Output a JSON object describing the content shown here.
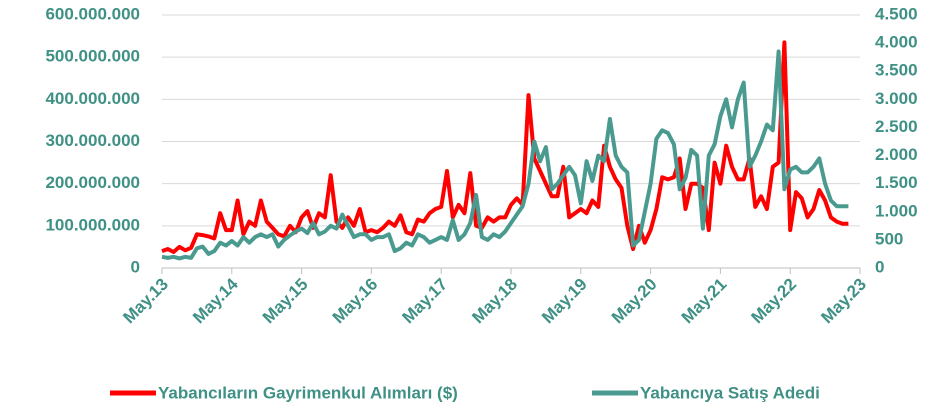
{
  "chart_data": {
    "type": "line",
    "categories": [
      "May.13",
      null,
      null,
      null,
      null,
      null,
      null,
      null,
      null,
      null,
      null,
      null,
      "May.14",
      null,
      null,
      null,
      null,
      null,
      null,
      null,
      null,
      null,
      null,
      null,
      "May.15",
      null,
      null,
      null,
      null,
      null,
      null,
      null,
      null,
      null,
      null,
      null,
      "May.16",
      null,
      null,
      null,
      null,
      null,
      null,
      null,
      null,
      null,
      null,
      null,
      "May.17",
      null,
      null,
      null,
      null,
      null,
      null,
      null,
      null,
      null,
      null,
      null,
      "May.18",
      null,
      null,
      null,
      null,
      null,
      null,
      null,
      null,
      null,
      null,
      null,
      "May.19",
      null,
      null,
      null,
      null,
      null,
      null,
      null,
      null,
      null,
      null,
      null,
      "May.20",
      null,
      null,
      null,
      null,
      null,
      null,
      null,
      null,
      null,
      null,
      null,
      "May.21",
      null,
      null,
      null,
      null,
      null,
      null,
      null,
      null,
      null,
      null,
      null,
      "May.22",
      null,
      null,
      null,
      null,
      null,
      null,
      null,
      null,
      null,
      null,
      null,
      "May.23"
    ],
    "series": [
      {
        "name": "Yabancıların Gayrimenkul Alımları ($)",
        "color": "#ff0000",
        "values": [
          40000000,
          45000000,
          38000000,
          50000000,
          42000000,
          48000000,
          80000000,
          78000000,
          75000000,
          70000000,
          130000000,
          90000000,
          90000000,
          160000000,
          80000000,
          110000000,
          100000000,
          160000000,
          110000000,
          95000000,
          80000000,
          75000000,
          100000000,
          85000000,
          120000000,
          135000000,
          95000000,
          130000000,
          120000000,
          220000000,
          110000000,
          95000000,
          120000000,
          100000000,
          140000000,
          85000000,
          90000000,
          85000000,
          95000000,
          110000000,
          100000000,
          125000000,
          85000000,
          80000000,
          115000000,
          110000000,
          130000000,
          140000000,
          145000000,
          230000000,
          120000000,
          150000000,
          130000000,
          225000000,
          100000000,
          95000000,
          120000000,
          110000000,
          120000000,
          120000000,
          150000000,
          165000000,
          150000000,
          410000000,
          260000000,
          230000000,
          200000000,
          170000000,
          170000000,
          240000000,
          120000000,
          130000000,
          140000000,
          130000000,
          160000000,
          145000000,
          290000000,
          240000000,
          210000000,
          190000000,
          100000000,
          45000000,
          100000000,
          60000000,
          90000000,
          140000000,
          215000000,
          210000000,
          215000000,
          260000000,
          140000000,
          200000000,
          200000000,
          190000000,
          90000000,
          250000000,
          200000000,
          290000000,
          240000000,
          210000000,
          210000000,
          260000000,
          145000000,
          170000000,
          140000000,
          240000000,
          250000000,
          535000000,
          90000000,
          180000000,
          165000000,
          120000000,
          140000000,
          185000000,
          160000000,
          120000000,
          110000000,
          105000000,
          105000000,
          null,
          null
        ]
      },
      {
        "name": "Yabancıya Satış Adedi",
        "color": "#4a9a90",
        "axis": "y2",
        "values": [
          200,
          180,
          200,
          170,
          200,
          180,
          350,
          380,
          250,
          300,
          450,
          400,
          480,
          400,
          550,
          450,
          550,
          600,
          550,
          600,
          380,
          500,
          580,
          650,
          700,
          620,
          800,
          600,
          650,
          750,
          700,
          950,
          750,
          550,
          600,
          600,
          500,
          550,
          550,
          600,
          300,
          350,
          450,
          400,
          600,
          550,
          450,
          500,
          550,
          500,
          850,
          500,
          600,
          800,
          1300,
          550,
          500,
          600,
          550,
          650,
          800,
          950,
          1100,
          1500,
          2250,
          1900,
          2150,
          1400,
          1500,
          1650,
          1800,
          1650,
          1150,
          1900,
          1550,
          2000,
          1900,
          2650,
          2000,
          1800,
          1700,
          400,
          500,
          1000,
          1500,
          2300,
          2450,
          2400,
          2200,
          1400,
          1600,
          2100,
          2000,
          700,
          2000,
          2200,
          2700,
          3000,
          2500,
          3000,
          3300,
          1800,
          2000,
          2250,
          2550,
          2450,
          3850,
          1400,
          1750,
          1800,
          1700,
          1700,
          1800,
          1950,
          1500,
          1200,
          1100,
          1100,
          1100,
          null,
          null
        ]
      }
    ],
    "ylim": [
      0,
      600000000
    ],
    "yticks": [
      0,
      {
        "value": 100000000,
        "label": "100.000.000"
      },
      {
        "value": 200000000,
        "label": "200.000.000"
      },
      {
        "value": 300000000,
        "label": "300.000.000"
      },
      {
        "value": 400000000,
        "label": "400.000.000"
      },
      {
        "value": 500000000,
        "label": "500.000.000"
      },
      {
        "value": 600000000,
        "label": "600.000.000"
      }
    ],
    "y2lim": [
      0,
      4500
    ],
    "y2ticks": [
      0,
      500,
      {
        "value": 1000,
        "label": "1.000"
      },
      {
        "value": 1500,
        "label": "1.500"
      },
      {
        "value": 2000,
        "label": "2.000"
      },
      {
        "value": 2500,
        "label": "2.500"
      },
      {
        "value": 3000,
        "label": "3.000"
      },
      {
        "value": 3500,
        "label": "3.500"
      },
      {
        "value": 4000,
        "label": "4.000"
      },
      {
        "value": 4500,
        "label": "4.500"
      }
    ],
    "grid": true,
    "legend": "bottom"
  }
}
